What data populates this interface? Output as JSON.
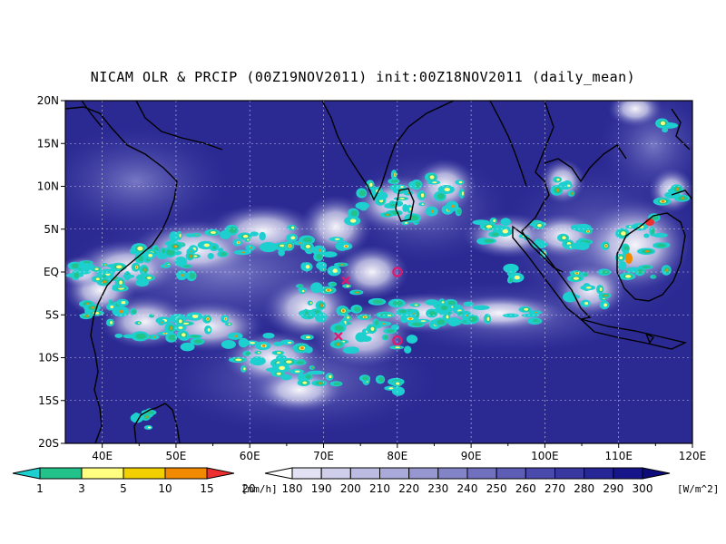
{
  "title": "NICAM OLR & PRCIP (00Z19NOV2011) init:00Z18NOV2011 (daily_mean)",
  "map": {
    "lon_range": [
      35,
      120
    ],
    "lat_range": [
      -20,
      20
    ],
    "lon_ticks": [
      "40E",
      "50E",
      "60E",
      "70E",
      "80E",
      "90E",
      "100E",
      "110E",
      "120E"
    ],
    "lat_ticks": [
      "20N",
      "15N",
      "10N",
      "5N",
      "EQ",
      "5S",
      "10S",
      "15S",
      "20S"
    ],
    "markers": [
      {
        "type": "x",
        "lon": 73,
        "lat": -1
      },
      {
        "type": "x",
        "lon": 72,
        "lat": -7.5
      },
      {
        "type": "o",
        "lon": 80,
        "lat": 0
      },
      {
        "type": "o",
        "lon": 80,
        "lat": -8
      }
    ],
    "marker_color": "#e0196e",
    "ocean_color": "#2b2a93"
  },
  "precip_legend": {
    "labels": [
      "1",
      "3",
      "5",
      "10",
      "15",
      "20"
    ],
    "colors": [
      "#1ecfcf",
      "#22c28a",
      "#ffff80",
      "#f2d000",
      "#f28a00",
      "#ee3030"
    ],
    "unit": "[mm/h]"
  },
  "olr_legend": {
    "labels": [
      "180",
      "190",
      "200",
      "210",
      "220",
      "230",
      "240",
      "250",
      "260",
      "270",
      "280",
      "290",
      "300"
    ],
    "colors": [
      "#ffffff",
      "#e2e2f4",
      "#cfcfec",
      "#bcbce3",
      "#a9a9da",
      "#9696d1",
      "#8383c8",
      "#7070bf",
      "#5d5db6",
      "#4a4aad",
      "#3838a0",
      "#262696",
      "#16168a",
      "#0c0c7a"
    ],
    "unit": "[W/m^2]"
  }
}
